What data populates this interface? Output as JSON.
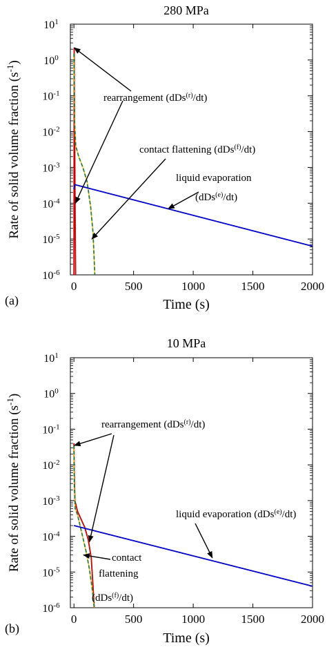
{
  "chart_data": [
    {
      "type": "line",
      "panel_label": "(a)",
      "title": "280 MPa",
      "xlabel": "Time (s)",
      "ylabel": "Rate of solid volume fraction (s",
      "ylabel_sup": "-1",
      "ylabel_tail": ")",
      "y_scale": "log",
      "xlim": [
        -30,
        2000
      ],
      "ylim_exp": [
        -6,
        1
      ],
      "x_ticks": [
        {
          "value": 0,
          "label": "0"
        },
        {
          "value": 500,
          "label": "500"
        },
        {
          "value": 1000,
          "label": "1000"
        },
        {
          "value": 1500,
          "label": "1500"
        },
        {
          "value": 2000,
          "label": "2000"
        }
      ],
      "y_ticks": [
        {
          "exp": 1,
          "label": "10",
          "sup": "1"
        },
        {
          "exp": 0,
          "label": "10",
          "sup": "0"
        },
        {
          "exp": -1,
          "label": "10",
          "sup": "-1"
        },
        {
          "exp": -2,
          "label": "10",
          "sup": "-2"
        },
        {
          "exp": -3,
          "label": "10",
          "sup": "-3"
        },
        {
          "exp": -4,
          "label": "10",
          "sup": "-4"
        },
        {
          "exp": -5,
          "label": "10",
          "sup": "-5"
        },
        {
          "exp": -6,
          "label": "10",
          "sup": "-6"
        }
      ],
      "series": [
        {
          "name": "rearrangement",
          "color": "#cc0000",
          "points": [
            [
              0,
              1e-06
            ],
            [
              2,
              2.2
            ],
            [
              6,
              0.01
            ],
            [
              10,
              5e-05
            ],
            [
              14,
              1e-06
            ]
          ]
        },
        {
          "name": "contact flattening",
          "color": "#2e7d32",
          "dash": true,
          "points": [
            [
              0,
              1.5
            ],
            [
              5,
              0.02
            ],
            [
              15,
              0.004
            ],
            [
              40,
              0.002
            ],
            [
              75,
              0.001
            ],
            [
              110,
              0.0004
            ],
            [
              140,
              8e-05
            ],
            [
              160,
              1.5e-05
            ],
            [
              175,
              1e-06
            ]
          ]
        },
        {
          "name": "liquid evaporation",
          "color": "#0000cc",
          "points": [
            [
              0,
              0.000245
            ],
            [
              8,
              0.00033
            ],
            [
              2000,
              6.3e-06
            ]
          ]
        }
      ],
      "annotations": [
        {
          "parts": [
            {
              "t": "rearrangement (dDs"
            },
            {
              "t": "(r)",
              "sup": true
            },
            {
              "t": "/dt)"
            }
          ],
          "arrows": [
            {
              "x": 2,
              "y": 2.2
            },
            {
              "x": 12,
              "y": 0.0001
            }
          ]
        },
        {
          "parts": [
            {
              "t": "contact flattening (dDs"
            },
            {
              "t": "(f)",
              "sup": true
            },
            {
              "t": "/dt)"
            }
          ],
          "arrows": [
            {
              "x": 150,
              "y": 1e-05
            }
          ]
        },
        {
          "parts": [
            {
              "t": "liquid evaporation"
            }
          ],
          "arrows": []
        },
        {
          "parts": [
            {
              "t": "(dDs"
            },
            {
              "t": "(e)",
              "sup": true
            },
            {
              "t": "/dt)"
            }
          ],
          "arrows": [
            {
              "x": 790,
              "y": 7e-05
            }
          ]
        }
      ]
    },
    {
      "type": "line",
      "panel_label": "(b)",
      "title": "10 MPa",
      "xlabel": "Time (s)",
      "ylabel": "Rate of solid volume fraction (s",
      "ylabel_sup": "-1",
      "ylabel_tail": ")",
      "y_scale": "log",
      "xlim": [
        -30,
        2000
      ],
      "ylim_exp": [
        -6,
        1
      ],
      "x_ticks": [
        {
          "value": 0,
          "label": "0"
        },
        {
          "value": 500,
          "label": "500"
        },
        {
          "value": 1000,
          "label": "1000"
        },
        {
          "value": 1500,
          "label": "1500"
        },
        {
          "value": 2000,
          "label": "2000"
        }
      ],
      "y_ticks": [
        {
          "exp": 1,
          "label": "10",
          "sup": "1"
        },
        {
          "exp": 0,
          "label": "10",
          "sup": "0"
        },
        {
          "exp": -1,
          "label": "10",
          "sup": "-1"
        },
        {
          "exp": -2,
          "label": "10",
          "sup": "-2"
        },
        {
          "exp": -3,
          "label": "10",
          "sup": "-3"
        },
        {
          "exp": -4,
          "label": "10",
          "sup": "-4"
        },
        {
          "exp": -5,
          "label": "10",
          "sup": "-5"
        },
        {
          "exp": -6,
          "label": "10",
          "sup": "-6"
        }
      ],
      "series": [
        {
          "name": "rearrangement",
          "color": "#cc0000",
          "points": [
            [
              0,
              0.04
            ],
            [
              2,
              0.01
            ],
            [
              8,
              0.001
            ],
            [
              30,
              0.0005
            ],
            [
              60,
              0.0003
            ],
            [
              90,
              0.00018
            ],
            [
              120,
              8e-05
            ],
            [
              145,
              2.5e-05
            ],
            [
              160,
              4e-06
            ],
            [
              170,
              1e-06
            ]
          ]
        },
        {
          "name": "contact flattening",
          "color": "#2e7d32",
          "dash": true,
          "points": [
            [
              0,
              0.035
            ],
            [
              3,
              0.003
            ],
            [
              10,
              0.0006
            ],
            [
              30,
              0.0004
            ],
            [
              60,
              0.00015
            ],
            [
              100,
              4e-05
            ],
            [
              130,
              1.2e-05
            ],
            [
              155,
              3e-06
            ],
            [
              170,
              1e-06
            ]
          ]
        },
        {
          "name": "liquid evaporation",
          "color": "#0000cc",
          "points": [
            [
              0,
              0.0002
            ],
            [
              2000,
              4e-06
            ]
          ]
        }
      ],
      "annotations": [
        {
          "parts": [
            {
              "t": "rearrangement (dDs"
            },
            {
              "t": "(r)",
              "sup": true
            },
            {
              "t": "/dt)"
            }
          ],
          "arrows": [
            {
              "x": 3,
              "y": 0.035
            },
            {
              "x": 130,
              "y": 7e-05
            }
          ]
        },
        {
          "parts": [
            {
              "t": "liquid evaporation (dDs"
            },
            {
              "t": "(e)",
              "sup": true
            },
            {
              "t": "/dt)"
            }
          ],
          "arrows": [
            {
              "x": 1160,
              "y": 2.5e-05
            }
          ]
        },
        {
          "parts": [
            {
              "t": "contact"
            }
          ],
          "arrows": [
            {
              "x": 80,
              "y": 3e-05
            }
          ]
        },
        {
          "parts": [
            {
              "t": "flattening"
            }
          ],
          "arrows": []
        },
        {
          "parts": [
            {
              "t": "(dDs"
            },
            {
              "t": "(f)",
              "sup": true
            },
            {
              "t": "/dt)"
            }
          ],
          "arrows": []
        }
      ]
    }
  ]
}
